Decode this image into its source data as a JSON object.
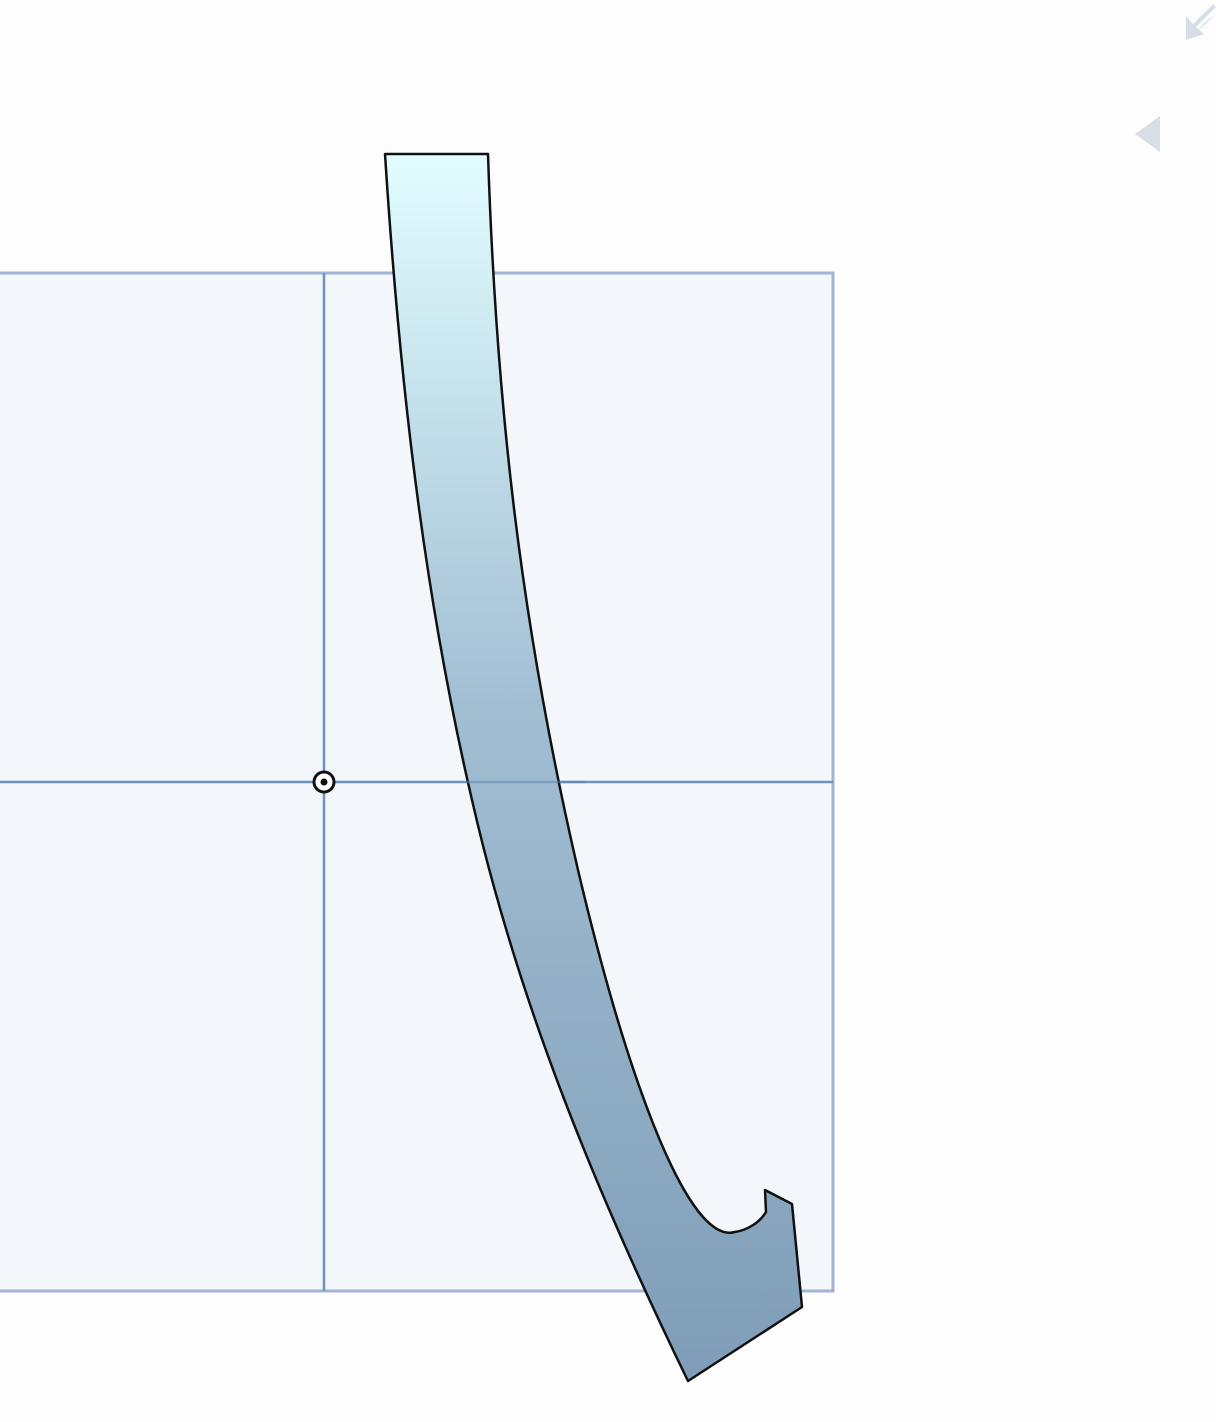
{
  "canvas": {
    "background_color": "#fdfdfd"
  },
  "grid_box": {
    "fill_color": "#f3f6fa",
    "line_color": "#9fb5d3",
    "axis_color": "#6f93bf"
  },
  "origin_marker": {
    "icon": "target-circle-icon",
    "color": "#111111"
  },
  "arrow_shape": {
    "icon": "curved-down-arrow-shape",
    "gradient_top_color": "#e2fdff",
    "gradient_mid_color": "#a2bed3",
    "gradient_bottom_color": "#7f9db8",
    "stroke_color": "#111111"
  },
  "view_controls": {
    "top_icon": "shrink-arrow-icon",
    "bottom_icon": "collapse-left-icon",
    "color": "#d7dee6"
  }
}
